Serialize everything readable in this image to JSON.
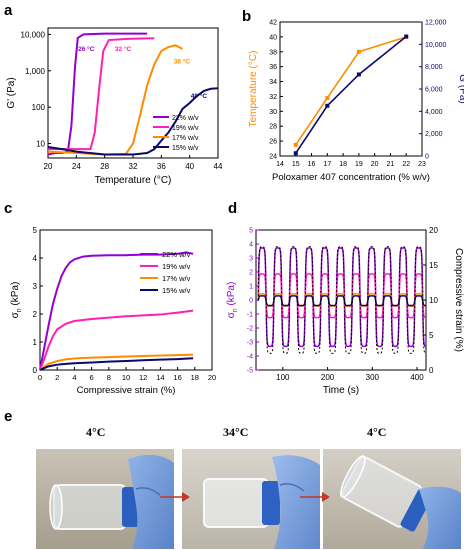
{
  "figure": {
    "panel_labels": [
      "a",
      "b",
      "c",
      "d",
      "e"
    ],
    "photo_temps": [
      "4°C",
      "34°C",
      "4°C"
    ]
  },
  "chart_data": [
    {
      "id": "a",
      "type": "line",
      "xlabel": "Temperature (°C)",
      "ylabel": "G' (Pa)",
      "xlim": [
        20,
        44
      ],
      "xticks": [
        20,
        24,
        28,
        32,
        36,
        40,
        44
      ],
      "ylim": [
        4,
        15000
      ],
      "ylog": true,
      "yticks": [
        10,
        100,
        1000,
        10000
      ],
      "ytick_labels": [
        "10",
        "100",
        "1,000",
        "10,000"
      ],
      "legend_position": "lower-right",
      "series": [
        {
          "name": "22% w/v",
          "color": "#9400d3",
          "points": [
            [
              20,
              5
            ],
            [
              21,
              5.5
            ],
            [
              22,
              5.5
            ],
            [
              22.8,
              6
            ],
            [
              23.3,
              30
            ],
            [
              23.8,
              1200
            ],
            [
              24.2,
              8000
            ],
            [
              25,
              10000
            ],
            [
              28,
              10500
            ],
            [
              32,
              10500
            ],
            [
              34,
              10500
            ]
          ]
        },
        {
          "name": "19% w/v",
          "color": "#ff1fb4",
          "points": [
            [
              20,
              7
            ],
            [
              22,
              7
            ],
            [
              24,
              7
            ],
            [
              26,
              7
            ],
            [
              26.6,
              20
            ],
            [
              27.2,
              300
            ],
            [
              27.8,
              3500
            ],
            [
              28.6,
              7000
            ],
            [
              31,
              7500
            ],
            [
              34,
              7800
            ],
            [
              35,
              7800
            ]
          ]
        },
        {
          "name": "17% w/v",
          "color": "#ff8c00",
          "points": [
            [
              20,
              6
            ],
            [
              24,
              5.5
            ],
            [
              28,
              5
            ],
            [
              31,
              5.2
            ],
            [
              32,
              10
            ],
            [
              33,
              60
            ],
            [
              34,
              400
            ],
            [
              35,
              1500
            ],
            [
              36,
              3500
            ],
            [
              37,
              4500
            ],
            [
              38,
              5000
            ],
            [
              39,
              4000
            ]
          ]
        },
        {
          "name": "15% w/v",
          "color": "#0a0a6b",
          "points": [
            [
              20,
              8
            ],
            [
              22,
              7
            ],
            [
              24,
              6
            ],
            [
              28,
              5
            ],
            [
              32,
              5
            ],
            [
              34,
              5.5
            ],
            [
              35,
              7
            ],
            [
              36,
              12
            ],
            [
              37,
              20
            ],
            [
              38,
              40
            ],
            [
              39,
              90
            ],
            [
              40,
              130
            ],
            [
              41,
              200
            ],
            [
              42,
              280
            ],
            [
              43,
              320
            ],
            [
              44,
              330
            ]
          ]
        }
      ],
      "annotations": [
        {
          "text": "26 °C",
          "color": "#9400d3",
          "x": 25.4,
          "y": 3500
        },
        {
          "text": "32 °C",
          "color": "#ff1fb4",
          "x": 30.6,
          "y": 3500
        },
        {
          "text": "38 °C",
          "color": "#ff8c00",
          "x": 38.9,
          "y": 1600
        },
        {
          "text": "40 °C",
          "color": "#0a0a6b",
          "x": 41.3,
          "y": 180
        }
      ]
    },
    {
      "id": "b",
      "type": "line",
      "xlabel": "Poloxamer 407 concentration (% w/v)",
      "ylabel_left": "Temperature (°C)",
      "ylabel_right": "G (Pa)",
      "xlim": [
        14,
        23
      ],
      "xticks": [
        14,
        15,
        16,
        17,
        18,
        19,
        20,
        21,
        22,
        23
      ],
      "ylim_left": [
        24,
        42
      ],
      "yticks_left": [
        24,
        26,
        28,
        30,
        32,
        34,
        36,
        38,
        40,
        42
      ],
      "ylim_right": [
        0,
        12000
      ],
      "yticks_right": [
        0,
        2000,
        4000,
        6000,
        8000,
        10000,
        12000
      ],
      "ytick_labels_right": [
        "0",
        "2,000",
        "4,000",
        "6,000",
        "8,000",
        "10,000",
        "12,000"
      ],
      "left_color": "#ff8c00",
      "right_color": "#0a0a6b",
      "series": [
        {
          "axis": "left",
          "color": "#ff8c00",
          "x": [
            15,
            17,
            19,
            22
          ],
          "y": [
            25.5,
            31.8,
            38,
            40
          ]
        },
        {
          "axis": "right",
          "color": "#0a0a6b",
          "x": [
            15,
            17,
            19,
            22
          ],
          "y": [
            250,
            4500,
            7300,
            10700
          ]
        }
      ]
    },
    {
      "id": "c",
      "type": "line",
      "xlabel": "Compressive strain (%)",
      "ylabel": "σ",
      "ylabel_sub": "n",
      "ylabel_unit": " (kPa)",
      "xlim": [
        0,
        20
      ],
      "xticks": [
        0,
        2,
        4,
        6,
        8,
        10,
        12,
        14,
        16,
        18,
        20
      ],
      "ylim": [
        0,
        5
      ],
      "yticks": [
        0,
        1,
        2,
        3,
        4,
        5
      ],
      "legend_position": "right",
      "series": [
        {
          "name": "22% w/v",
          "color": "#9400d3",
          "points": [
            [
              0,
              0
            ],
            [
              0.5,
              0.8
            ],
            [
              1,
              1.6
            ],
            [
              1.5,
              2.35
            ],
            [
              2,
              2.9
            ],
            [
              2.5,
              3.35
            ],
            [
              3,
              3.65
            ],
            [
              3.5,
              3.85
            ],
            [
              4,
              3.95
            ],
            [
              5,
              4.05
            ],
            [
              6,
              4.08
            ],
            [
              8,
              4.1
            ],
            [
              10,
              4.1
            ],
            [
              12,
              4.12
            ],
            [
              14,
              4.12
            ],
            [
              16,
              4.15
            ],
            [
              17,
              4.2
            ],
            [
              17.8,
              4.15
            ]
          ]
        },
        {
          "name": "19% w/v",
          "color": "#ff1fb4",
          "points": [
            [
              0,
              0
            ],
            [
              0.5,
              0.4
            ],
            [
              1,
              0.85
            ],
            [
              1.5,
              1.2
            ],
            [
              2,
              1.45
            ],
            [
              3,
              1.65
            ],
            [
              4,
              1.75
            ],
            [
              6,
              1.82
            ],
            [
              8,
              1.87
            ],
            [
              10,
              1.92
            ],
            [
              12,
              1.95
            ],
            [
              14,
              1.98
            ],
            [
              16,
              2.05
            ],
            [
              17.8,
              2.12
            ]
          ]
        },
        {
          "name": "17% w/v",
          "color": "#ff8c00",
          "points": [
            [
              0,
              0
            ],
            [
              0.5,
              0.12
            ],
            [
              1,
              0.22
            ],
            [
              2,
              0.32
            ],
            [
              3,
              0.38
            ],
            [
              4,
              0.41
            ],
            [
              6,
              0.44
            ],
            [
              8,
              0.46
            ],
            [
              10,
              0.48
            ],
            [
              12,
              0.5
            ],
            [
              14,
              0.52
            ],
            [
              16,
              0.53
            ],
            [
              17.8,
              0.55
            ]
          ]
        },
        {
          "name": "15% w/v",
          "color": "#0a0a6b",
          "points": [
            [
              0,
              0
            ],
            [
              0.5,
              0.07
            ],
            [
              1,
              0.13
            ],
            [
              2,
              0.19
            ],
            [
              3,
              0.22
            ],
            [
              4,
              0.24
            ],
            [
              6,
              0.27
            ],
            [
              8,
              0.3
            ],
            [
              10,
              0.32
            ],
            [
              12,
              0.35
            ],
            [
              14,
              0.37
            ],
            [
              16,
              0.39
            ],
            [
              17.8,
              0.42
            ]
          ]
        }
      ]
    },
    {
      "id": "d",
      "type": "line",
      "xlabel": "Time (s)",
      "ylabel_left": "σ",
      "ylabel_left_sub": "n",
      "ylabel_left_unit": " (kPa)",
      "ylabel_right": "Compressive strain (%)",
      "xlim": [
        40,
        420
      ],
      "xticks": [
        100,
        200,
        300,
        400
      ],
      "ylim_left": [
        -5,
        5
      ],
      "yticks_left": [
        -5,
        -4,
        -3,
        -2,
        -1,
        0,
        1,
        2,
        3,
        4,
        5
      ],
      "ylim_right": [
        0,
        20
      ],
      "yticks_right": [
        0,
        5,
        10,
        15,
        20
      ],
      "left_color": "#9400d3",
      "cycle_period": 35,
      "start_time": 45,
      "series": [
        {
          "name": "22% w/v",
          "color": "#9400d3",
          "amplitude": 3.6,
          "offset": 0.2
        },
        {
          "name": "19% w/v",
          "color": "#ff1fb4",
          "amplitude": 1.6,
          "offset": 0.3
        },
        {
          "name": "17% w/v",
          "color": "#ff8c00",
          "amplitude": 0.45,
          "offset": 0.0
        },
        {
          "name": "15% w/v",
          "color": "#0a0a6b",
          "amplitude": 0.35,
          "offset": -0.05
        },
        {
          "name": "strain",
          "color": "#000000",
          "amplitude": 3.9,
          "offset": 0.0,
          "dashed": true
        }
      ]
    }
  ]
}
